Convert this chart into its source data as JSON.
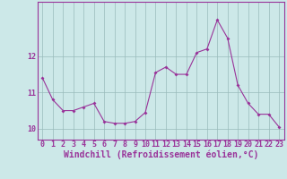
{
  "x": [
    0,
    1,
    2,
    3,
    4,
    5,
    6,
    7,
    8,
    9,
    10,
    11,
    12,
    13,
    14,
    15,
    16,
    17,
    18,
    19,
    20,
    21,
    22,
    23
  ],
  "y": [
    11.4,
    10.8,
    10.5,
    10.5,
    10.6,
    10.7,
    10.2,
    10.15,
    10.15,
    10.2,
    10.45,
    11.55,
    11.7,
    11.5,
    11.5,
    12.1,
    12.2,
    13.0,
    12.5,
    11.2,
    10.7,
    10.4,
    10.4,
    10.05
  ],
  "line_color": "#993399",
  "marker_color": "#993399",
  "bg_color": "#cce8e8",
  "grid_color": "#99bbbb",
  "xlabel": "Windchill (Refroidissement éolien,°C)",
  "ylim": [
    9.7,
    13.5
  ],
  "xlim": [
    -0.5,
    23.5
  ],
  "yticks": [
    10,
    11,
    12
  ],
  "xticks": [
    0,
    1,
    2,
    3,
    4,
    5,
    6,
    7,
    8,
    9,
    10,
    11,
    12,
    13,
    14,
    15,
    16,
    17,
    18,
    19,
    20,
    21,
    22,
    23
  ],
  "tick_fontsize": 6,
  "xlabel_fontsize": 7
}
